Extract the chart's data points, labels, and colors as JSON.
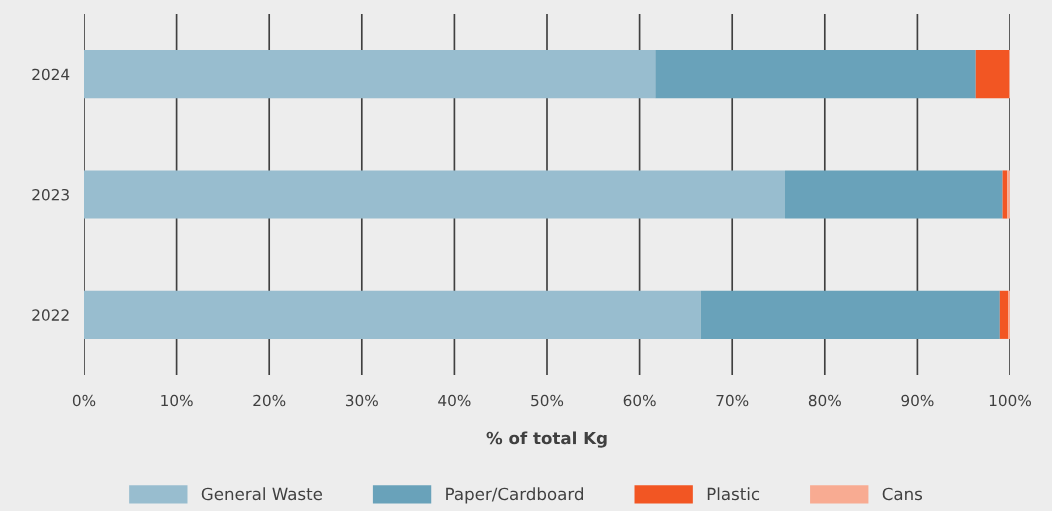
{
  "chart_data": {
    "type": "bar",
    "orientation": "horizontal",
    "stacked": true,
    "xlabel": "% of total Kg",
    "categories": [
      "2024",
      "2023",
      "2022"
    ],
    "series": [
      {
        "name": "General Waste",
        "color": "#98bdcf",
        "values": [
          61.7,
          75.7,
          66.6
        ]
      },
      {
        "name": "Paper/Cardboard",
        "color": "#69a2ba",
        "values": [
          34.6,
          23.5,
          32.3
        ]
      },
      {
        "name": "Plastic",
        "color": "#f25623",
        "values": [
          3.6,
          0.5,
          0.9
        ]
      },
      {
        "name": "Cans",
        "color": "#f8ab92",
        "values": [
          0.1,
          0.3,
          0.2
        ]
      }
    ],
    "xlim": [
      0,
      100
    ],
    "xticks": [
      {
        "value": 0,
        "label": "0%"
      },
      {
        "value": 10,
        "label": "10%"
      },
      {
        "value": 20,
        "label": "20%"
      },
      {
        "value": 30,
        "label": "30%"
      },
      {
        "value": 40,
        "label": "40%"
      },
      {
        "value": 50,
        "label": "50%"
      },
      {
        "value": 60,
        "label": "60%"
      },
      {
        "value": 70,
        "label": "70%"
      },
      {
        "value": 80,
        "label": "80%"
      },
      {
        "value": 90,
        "label": "90%"
      },
      {
        "value": 100,
        "label": "100%"
      }
    ],
    "grid": "x",
    "legend": "bottom"
  }
}
